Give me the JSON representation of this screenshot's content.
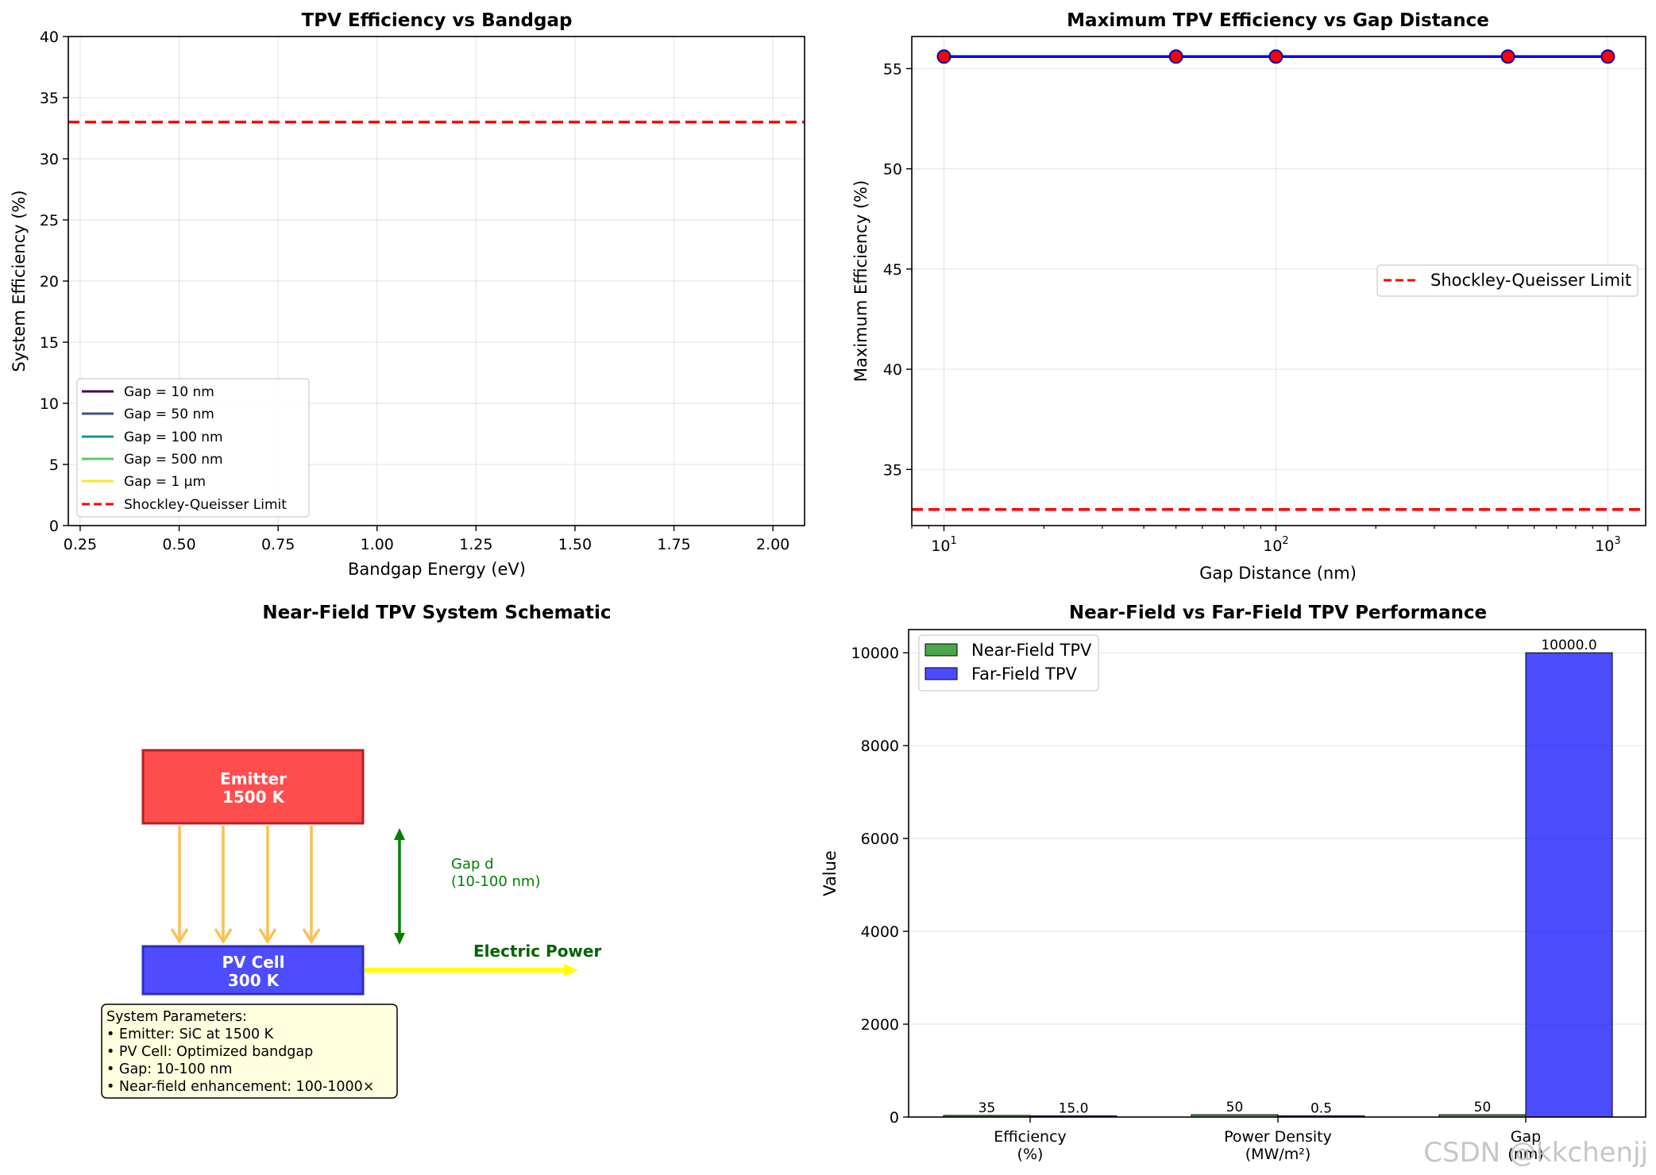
{
  "chart_data": [
    {
      "type": "line",
      "title": "TPV Efficiency vs Bandgap",
      "xlabel": "Bandgap Energy (eV)",
      "ylabel": "System Efficiency (%)",
      "xlim": [
        0.22,
        2.08
      ],
      "ylim": [
        0,
        40
      ],
      "xticks": [
        0.25,
        0.5,
        0.75,
        1.0,
        1.25,
        1.5,
        1.75,
        2.0
      ],
      "xtick_labels": [
        "0.25",
        "0.50",
        "0.75",
        "1.00",
        "1.25",
        "1.50",
        "1.75",
        "2.00"
      ],
      "yticks": [
        0,
        5,
        10,
        15,
        20,
        25,
        30,
        35,
        40
      ],
      "ytick_labels": [
        "0",
        "5",
        "10",
        "15",
        "20",
        "25",
        "30",
        "35",
        "40"
      ],
      "grid": true,
      "legend_position": "lower-left",
      "series": [
        {
          "name": "Gap = 10 nm",
          "color": "#440154",
          "values": []
        },
        {
          "name": "Gap = 50 nm",
          "color": "#3b528b",
          "values": []
        },
        {
          "name": "Gap = 100 nm",
          "color": "#21918c",
          "values": []
        },
        {
          "name": "Gap = 500 nm",
          "color": "#5ec962",
          "values": []
        },
        {
          "name": "Gap = 1 µm",
          "color": "#fde725",
          "values": []
        }
      ],
      "reference_line": {
        "name": "Shockley-Queisser Limit",
        "y": 33.0,
        "color": "#ff0000",
        "style": "dashed"
      }
    },
    {
      "type": "line",
      "title": "Maximum TPV Efficiency vs Gap Distance",
      "xlabel": "Gap Distance (nm)",
      "ylabel": "Maximum Efficiency (%)",
      "xscale": "log",
      "xlim": [
        8,
        1300
      ],
      "ylim": [
        32.2,
        56.6
      ],
      "xticks": [
        {
          "base": "10",
          "exp": "1",
          "value": 10
        },
        {
          "base": "10",
          "exp": "2",
          "value": 100
        },
        {
          "base": "10",
          "exp": "3",
          "value": 1000
        }
      ],
      "yticks": [
        35,
        40,
        45,
        50,
        55
      ],
      "ytick_labels": [
        "35",
        "40",
        "45",
        "50",
        "55"
      ],
      "grid": true,
      "legend_position": "center-right",
      "series": [
        {
          "color": "#0000ff",
          "marker_color": "#ff0000",
          "x": [
            10,
            50,
            100,
            500,
            1000
          ],
          "y": [
            55.6,
            55.6,
            55.6,
            55.6,
            55.6
          ]
        }
      ],
      "reference_line": {
        "name": "Shockley-Queisser Limit",
        "y": 33.0,
        "color": "#ff0000",
        "style": "dashed"
      }
    },
    {
      "type": "bar",
      "title": "Near-Field vs Far-Field TPV Performance",
      "ylabel": "Value",
      "categories": [
        "Efficiency\n(%)",
        "Power Density\n(MW/m²)",
        "Gap\n(nm)"
      ],
      "ylim": [
        0,
        10500
      ],
      "yticks": [
        0,
        2000,
        4000,
        6000,
        8000,
        10000
      ],
      "ytick_labels": [
        "0",
        "2000",
        "4000",
        "6000",
        "8000",
        "10000"
      ],
      "grid": true,
      "legend_position": "upper-left",
      "series": [
        {
          "name": "Near-Field TPV",
          "color": "#008000",
          "values": [
            35,
            50,
            50
          ],
          "labels": [
            "35",
            "50",
            "50"
          ]
        },
        {
          "name": "Far-Field TPV",
          "color": "#0000ff",
          "values": [
            15.0,
            0.5,
            10000.0
          ],
          "labels": [
            "15.0",
            "0.5",
            "10000.0"
          ]
        }
      ]
    }
  ],
  "schematic": {
    "title": "Near-Field TPV System Schematic",
    "emitter_line1": "Emitter",
    "emitter_line2": "1500 K",
    "pv_line1": "PV Cell",
    "pv_line2": "300 K",
    "gap_line1": "Gap d",
    "gap_line2": "(10-100 nm)",
    "electric_power": "Electric Power",
    "params": [
      "System Parameters:",
      "• Emitter: SiC at 1500 K",
      "• PV Cell: Optimized bandgap",
      "• Gap: 10-100 nm",
      "• Near-field enhancement: 100-1000×"
    ]
  },
  "watermark": "CSDN @kkchenjj"
}
